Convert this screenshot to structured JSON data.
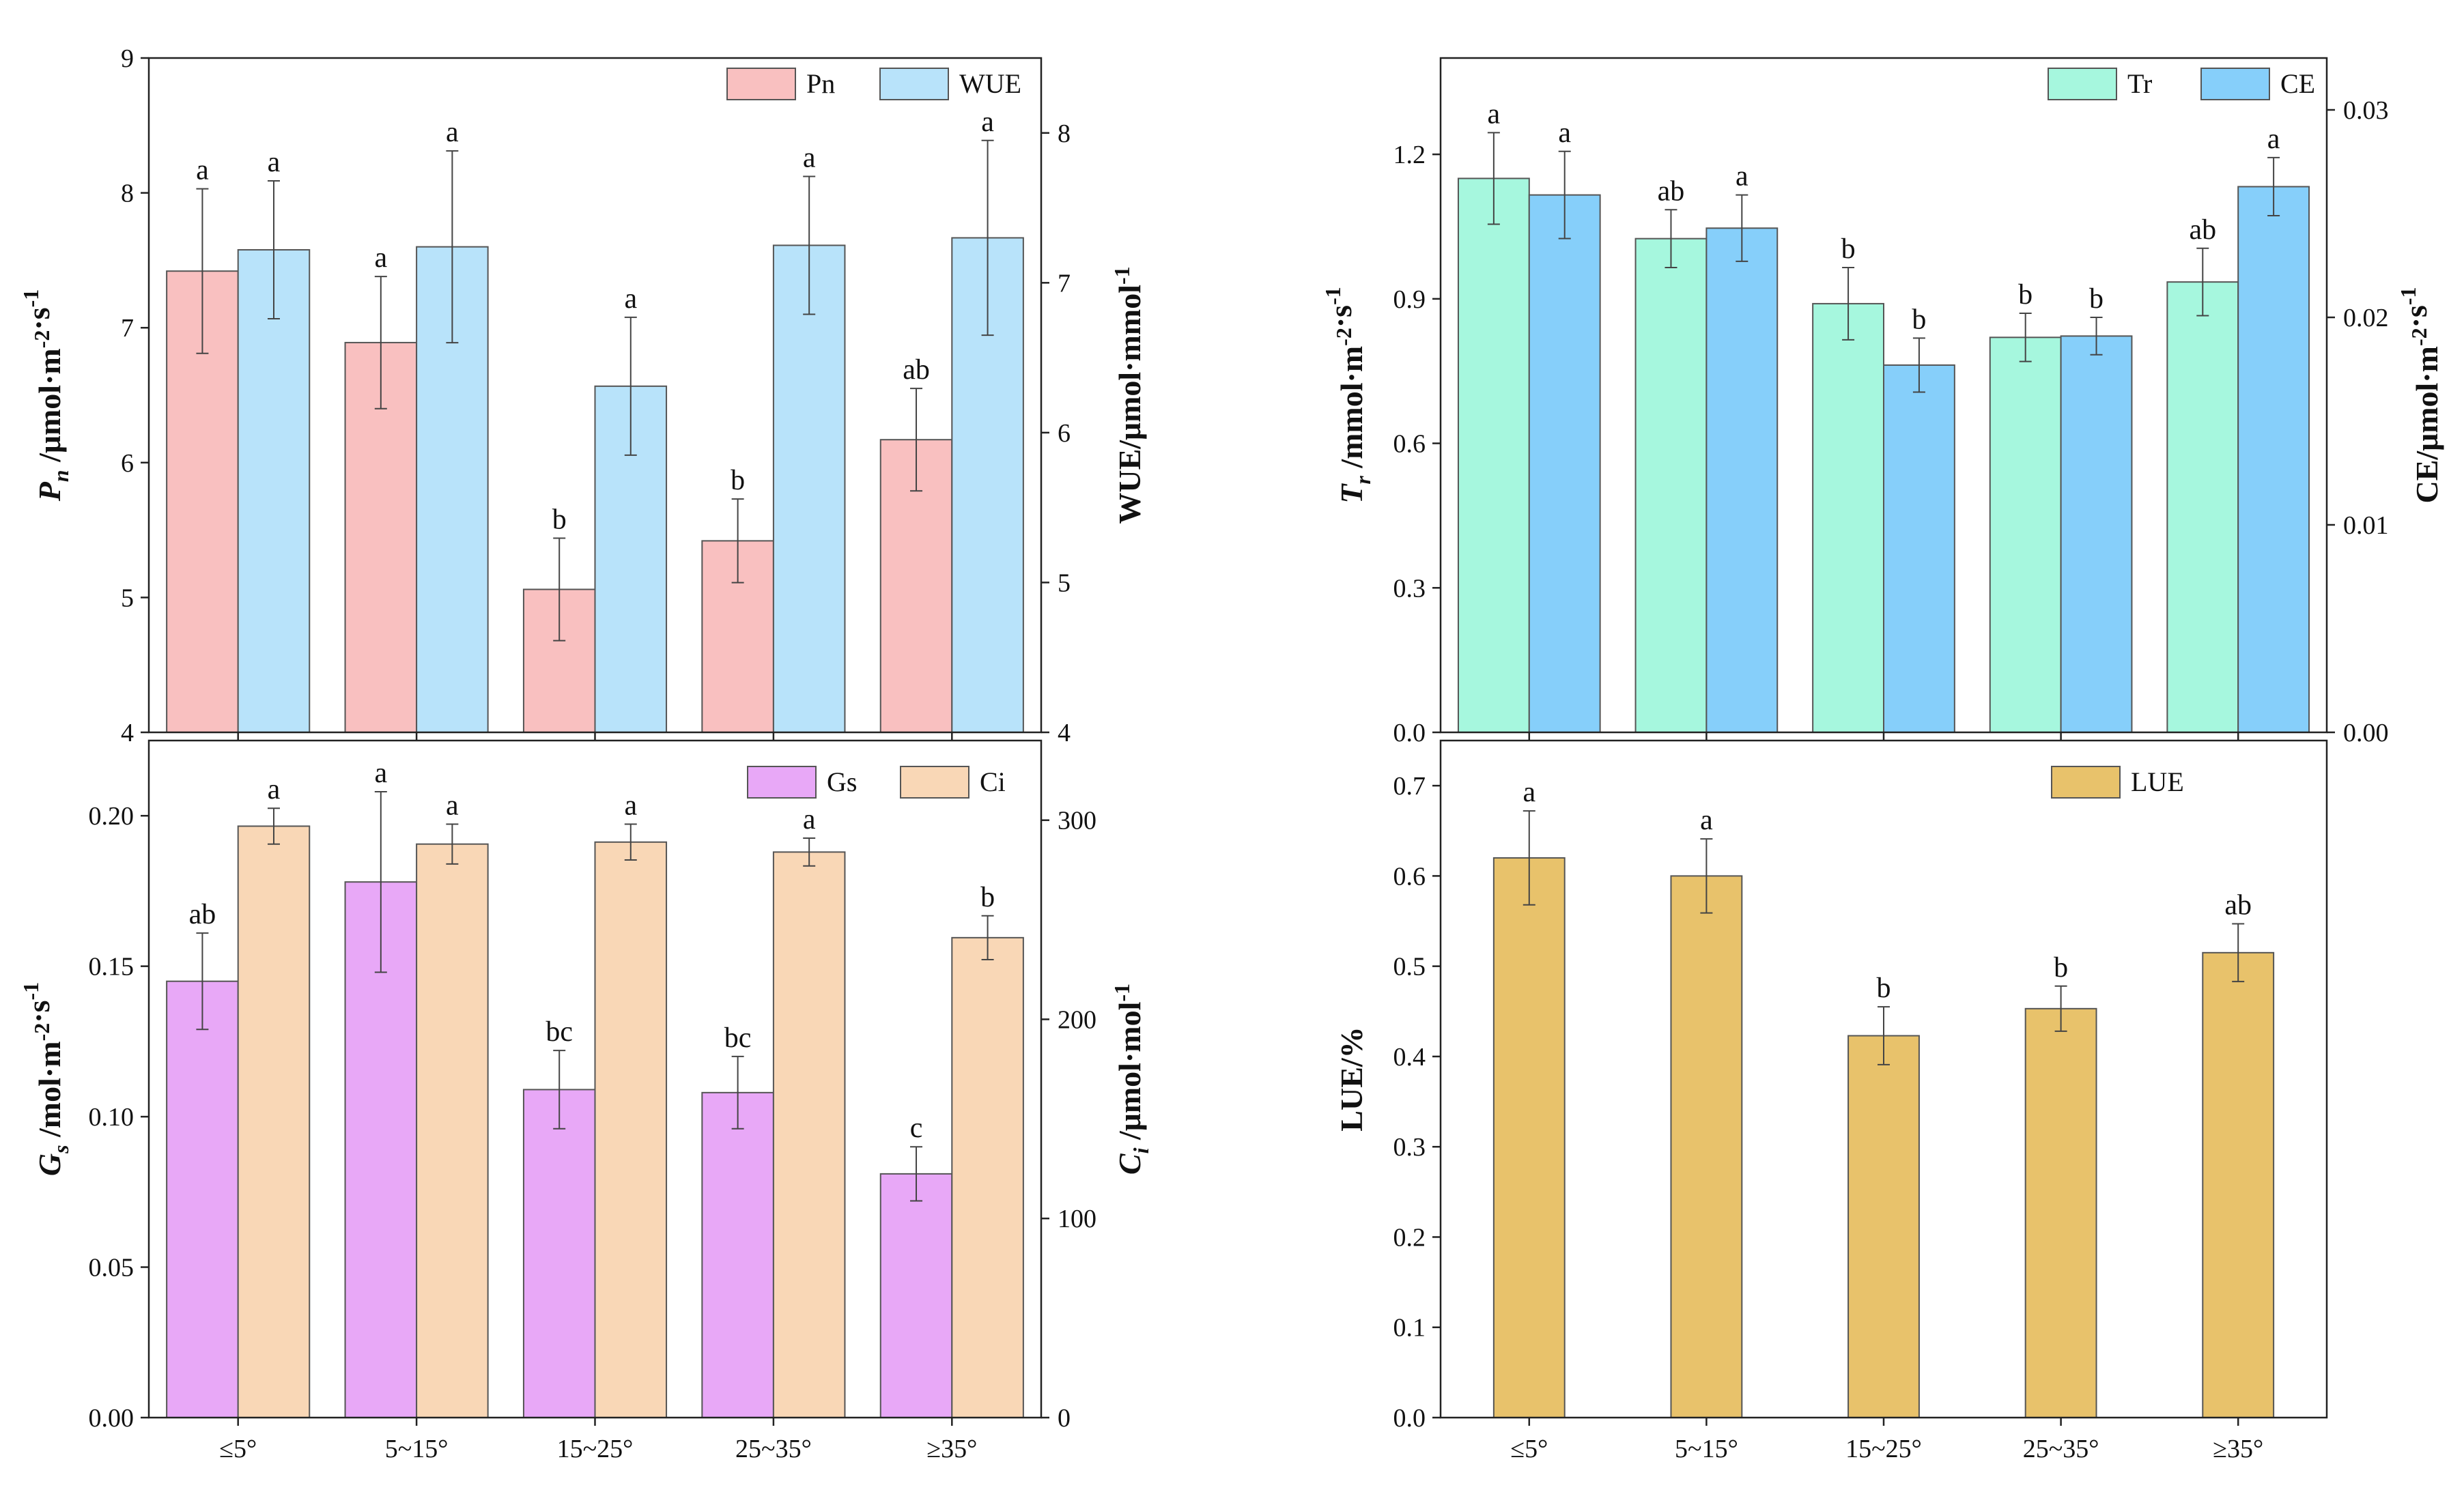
{
  "categories": [
    "≤5°",
    "5~15°",
    "15~25°",
    "25~35°",
    "≥35°"
  ],
  "colors": {
    "Pn": "#f9c0c0",
    "WUE": "#b8e3fa",
    "Gs": "#e8a8f7",
    "Ci": "#f9d7b6",
    "Tr": "#a6f7de",
    "CE": "#86cffa",
    "LUE": "#e8c26b",
    "stroke": "#555555"
  },
  "chart_data": [
    {
      "type": "bar",
      "panel": "top-left",
      "categories": [
        "≤5°",
        "5~15°",
        "15~25°",
        "25~35°",
        "≥35°"
      ],
      "ylabel_left": "Pn /μmol·m-2·s-1",
      "ylabel_right": "WUE/μmol·mmol-1",
      "ylim_left": [
        4,
        9
      ],
      "yticks_left": [
        4,
        5,
        6,
        7,
        8,
        9
      ],
      "ylim_right": [
        4,
        8.5
      ],
      "yticks_right": [
        4,
        5,
        6,
        7,
        8
      ],
      "legend": [
        "Pn",
        "WUE"
      ],
      "series": [
        {
          "name": "Pn",
          "axis": "left",
          "values": [
            7.42,
            6.89,
            5.06,
            5.42,
            6.17
          ],
          "errors": [
            0.61,
            0.49,
            0.38,
            0.31,
            0.38
          ],
          "letters": [
            "a",
            "a",
            "b",
            "b",
            "ab"
          ]
        },
        {
          "name": "WUE",
          "axis": "right",
          "values": [
            7.22,
            7.24,
            6.31,
            7.25,
            7.3
          ],
          "errors": [
            0.46,
            0.64,
            0.46,
            0.46,
            0.65
          ],
          "letters": [
            "a",
            "a",
            "a",
            "a",
            "a"
          ]
        }
      ]
    },
    {
      "type": "bar",
      "panel": "top-right",
      "categories": [
        "≤5°",
        "5~15°",
        "15~25°",
        "25~35°",
        "≥35°"
      ],
      "ylabel_left": "Tr /mmol·m-2·s-1",
      "ylabel_right": "CE/μmol·m-2·s-1",
      "ylim_left": [
        0,
        1.4
      ],
      "yticks_left": [
        0.0,
        0.3,
        0.6,
        0.9,
        1.2
      ],
      "ylim_right": [
        0,
        0.0325
      ],
      "yticks_right": [
        0.0,
        0.01,
        0.02,
        0.03
      ],
      "legend": [
        "Tr",
        "CE"
      ],
      "series": [
        {
          "name": "Tr",
          "axis": "left",
          "values": [
            1.15,
            1.025,
            0.89,
            0.82,
            0.935
          ],
          "errors": [
            0.095,
            0.06,
            0.075,
            0.05,
            0.07
          ],
          "letters": [
            "a",
            "ab",
            "b",
            "b",
            "ab"
          ]
        },
        {
          "name": "CE",
          "axis": "right",
          "values": [
            0.0259,
            0.0243,
            0.0177,
            0.0191,
            0.0263
          ],
          "errors": [
            0.0021,
            0.0016,
            0.0013,
            0.0009,
            0.0014
          ],
          "letters": [
            "a",
            "a",
            "b",
            "b",
            "a"
          ]
        }
      ]
    },
    {
      "type": "bar",
      "panel": "bottom-left",
      "categories": [
        "≤5°",
        "5~15°",
        "15~25°",
        "25~35°",
        "≥35°"
      ],
      "ylabel_left": "Gs /mol·m-2·s-1",
      "ylabel_right": "Ci /μmol·mol-1",
      "ylim_left": [
        0,
        0.225
      ],
      "yticks_left": [
        0.0,
        0.05,
        0.1,
        0.15,
        0.2
      ],
      "ylim_right": [
        0,
        340
      ],
      "yticks_right": [
        0,
        100,
        200,
        300
      ],
      "legend": [
        "Gs",
        "Ci"
      ],
      "series": [
        {
          "name": "Gs",
          "axis": "left",
          "values": [
            0.145,
            0.178,
            0.109,
            0.108,
            0.081
          ],
          "errors": [
            0.016,
            0.03,
            0.013,
            0.012,
            0.009
          ],
          "letters": [
            "ab",
            "a",
            "bc",
            "bc",
            "c"
          ]
        },
        {
          "name": "Ci",
          "axis": "right",
          "values": [
            297,
            288,
            289,
            284,
            241
          ],
          "errors": [
            9,
            10,
            9,
            7,
            11
          ],
          "letters": [
            "a",
            "a",
            "a",
            "a",
            "b"
          ]
        }
      ]
    },
    {
      "type": "bar",
      "panel": "bottom-right",
      "categories": [
        "≤5°",
        "5~15°",
        "15~25°",
        "25~35°",
        "≥35°"
      ],
      "ylabel_left": "LUE/%",
      "ylim_left": [
        0,
        0.75
      ],
      "yticks_left": [
        0.0,
        0.1,
        0.2,
        0.3,
        0.4,
        0.5,
        0.6,
        0.7
      ],
      "legend": [
        "LUE"
      ],
      "series": [
        {
          "name": "LUE",
          "axis": "left",
          "values": [
            0.62,
            0.6,
            0.423,
            0.453,
            0.515
          ],
          "errors": [
            0.052,
            0.041,
            0.032,
            0.025,
            0.032
          ],
          "letters": [
            "a",
            "a",
            "b",
            "b",
            "ab"
          ]
        }
      ]
    }
  ]
}
